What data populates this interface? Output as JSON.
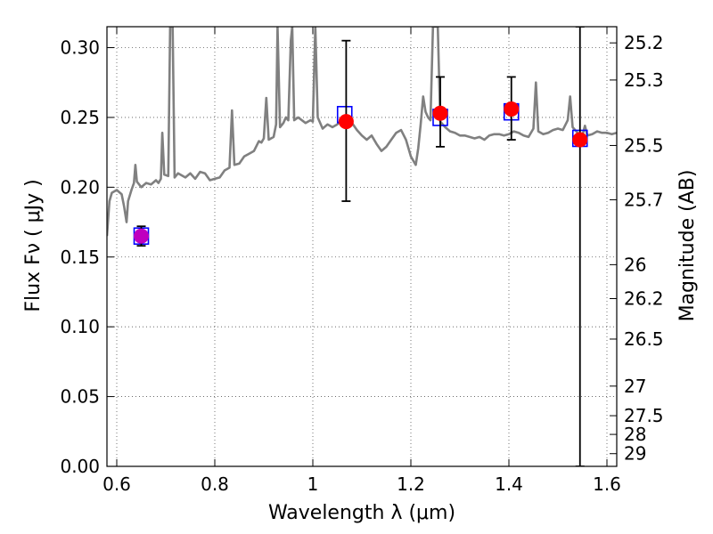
{
  "chart_data": {
    "type": "scatter",
    "xlabel": "Wavelength  λ (μm)",
    "ylabel": "Flux  Fν  ( μJy )",
    "ylabel_right": "Magnitude (AB)",
    "xlim": [
      0.58,
      1.62
    ],
    "ylim": [
      0.0,
      0.315
    ],
    "grid": true,
    "x_ticks": [
      {
        "value": 0.6,
        "label": "0.6"
      },
      {
        "value": 0.8,
        "label": "0.8"
      },
      {
        "value": 1.0,
        "label": "1"
      },
      {
        "value": 1.2,
        "label": "1.2"
      },
      {
        "value": 1.4,
        "label": "1.4"
      },
      {
        "value": 1.6,
        "label": "1.6"
      }
    ],
    "y_ticks": [
      {
        "value": 0.0,
        "label": "0.00"
      },
      {
        "value": 0.05,
        "label": "0.05"
      },
      {
        "value": 0.1,
        "label": "0.10"
      },
      {
        "value": 0.15,
        "label": "0.15"
      },
      {
        "value": 0.2,
        "label": "0.20"
      },
      {
        "value": 0.25,
        "label": "0.25"
      },
      {
        "value": 0.3,
        "label": "0.30"
      }
    ],
    "mag_ticks": [
      {
        "flux": 0.3034,
        "label": "25.2"
      },
      {
        "flux": 0.2768,
        "label": "25.3"
      },
      {
        "flux": 0.2299,
        "label": "25.5"
      },
      {
        "flux": 0.191,
        "label": "25.7"
      },
      {
        "flux": 0.1445,
        "label": "26"
      },
      {
        "flux": 0.1202,
        "label": "26.2"
      },
      {
        "flux": 0.0912,
        "label": "26.5"
      },
      {
        "flux": 0.0575,
        "label": "27"
      },
      {
        "flux": 0.0363,
        "label": "27.5"
      },
      {
        "flux": 0.0229,
        "label": "28"
      },
      {
        "flux": 0.0091,
        "label": "29"
      }
    ],
    "colors": {
      "spectrum": "#808080",
      "model_box": "#0000ff",
      "observed": "#ff0000",
      "first_point": "#bf00bf",
      "errorbar": "#000000",
      "grid": "#555555"
    },
    "model_points": [
      {
        "x": 0.65,
        "y": 0.165
      },
      {
        "x": 1.065,
        "y": 0.252
      },
      {
        "x": 1.26,
        "y": 0.25
      },
      {
        "x": 1.405,
        "y": 0.254
      },
      {
        "x": 1.545,
        "y": 0.235
      }
    ],
    "observed_points": [
      {
        "x": 0.65,
        "y": 0.165,
        "ylow": 0.158,
        "yhigh": 0.172,
        "color": "first_point"
      },
      {
        "x": 1.068,
        "y": 0.247,
        "ylow": 0.19,
        "yhigh": 0.305,
        "color": "observed"
      },
      {
        "x": 1.26,
        "y": 0.253,
        "ylow": 0.229,
        "yhigh": 0.279,
        "color": "observed"
      },
      {
        "x": 1.405,
        "y": 0.256,
        "ylow": 0.234,
        "yhigh": 0.279,
        "color": "observed"
      },
      {
        "x": 1.545,
        "y": 0.234,
        "ylow": 0.0,
        "yhigh": 0.315,
        "color": "observed"
      }
    ],
    "spectrum": [
      [
        0.58,
        0.165
      ],
      [
        0.585,
        0.19
      ],
      [
        0.59,
        0.196
      ],
      [
        0.6,
        0.198
      ],
      [
        0.61,
        0.195
      ],
      [
        0.615,
        0.186
      ],
      [
        0.62,
        0.175
      ],
      [
        0.623,
        0.19
      ],
      [
        0.63,
        0.198
      ],
      [
        0.635,
        0.203
      ],
      [
        0.638,
        0.216
      ],
      [
        0.641,
        0.204
      ],
      [
        0.65,
        0.2
      ],
      [
        0.66,
        0.203
      ],
      [
        0.67,
        0.202
      ],
      [
        0.68,
        0.205
      ],
      [
        0.685,
        0.203
      ],
      [
        0.69,
        0.206
      ],
      [
        0.693,
        0.239
      ],
      [
        0.697,
        0.209
      ],
      [
        0.705,
        0.208
      ],
      [
        0.709,
        0.315
      ],
      [
        0.714,
        0.315
      ],
      [
        0.718,
        0.207
      ],
      [
        0.725,
        0.21
      ],
      [
        0.74,
        0.207
      ],
      [
        0.75,
        0.21
      ],
      [
        0.76,
        0.206
      ],
      [
        0.77,
        0.211
      ],
      [
        0.78,
        0.21
      ],
      [
        0.79,
        0.205
      ],
      [
        0.8,
        0.206
      ],
      [
        0.81,
        0.207
      ],
      [
        0.82,
        0.212
      ],
      [
        0.83,
        0.214
      ],
      [
        0.835,
        0.255
      ],
      [
        0.84,
        0.216
      ],
      [
        0.85,
        0.217
      ],
      [
        0.86,
        0.222
      ],
      [
        0.87,
        0.224
      ],
      [
        0.88,
        0.226
      ],
      [
        0.89,
        0.233
      ],
      [
        0.895,
        0.232
      ],
      [
        0.9,
        0.235
      ],
      [
        0.905,
        0.264
      ],
      [
        0.91,
        0.234
      ],
      [
        0.92,
        0.236
      ],
      [
        0.925,
        0.245
      ],
      [
        0.928,
        0.315
      ],
      [
        0.933,
        0.243
      ],
      [
        0.94,
        0.246
      ],
      [
        0.945,
        0.25
      ],
      [
        0.95,
        0.248
      ],
      [
        0.955,
        0.305
      ],
      [
        0.958,
        0.315
      ],
      [
        0.962,
        0.248
      ],
      [
        0.97,
        0.25
      ],
      [
        0.985,
        0.246
      ],
      [
        0.995,
        0.248
      ],
      [
        1.0,
        0.247
      ],
      [
        1.005,
        0.315
      ],
      [
        1.01,
        0.25
      ],
      [
        1.02,
        0.242
      ],
      [
        1.03,
        0.245
      ],
      [
        1.04,
        0.243
      ],
      [
        1.05,
        0.245
      ],
      [
        1.06,
        0.249
      ],
      [
        1.07,
        0.25
      ],
      [
        1.08,
        0.246
      ],
      [
        1.09,
        0.241
      ],
      [
        1.1,
        0.237
      ],
      [
        1.11,
        0.234
      ],
      [
        1.12,
        0.237
      ],
      [
        1.13,
        0.231
      ],
      [
        1.14,
        0.226
      ],
      [
        1.15,
        0.229
      ],
      [
        1.16,
        0.234
      ],
      [
        1.17,
        0.239
      ],
      [
        1.18,
        0.241
      ],
      [
        1.19,
        0.234
      ],
      [
        1.2,
        0.222
      ],
      [
        1.21,
        0.216
      ],
      [
        1.215,
        0.228
      ],
      [
        1.22,
        0.245
      ],
      [
        1.225,
        0.265
      ],
      [
        1.23,
        0.254
      ],
      [
        1.235,
        0.25
      ],
      [
        1.24,
        0.248
      ],
      [
        1.245,
        0.315
      ],
      [
        1.255,
        0.315
      ],
      [
        1.26,
        0.247
      ],
      [
        1.27,
        0.243
      ],
      [
        1.28,
        0.24
      ],
      [
        1.29,
        0.239
      ],
      [
        1.3,
        0.237
      ],
      [
        1.31,
        0.237
      ],
      [
        1.32,
        0.236
      ],
      [
        1.33,
        0.235
      ],
      [
        1.34,
        0.236
      ],
      [
        1.35,
        0.234
      ],
      [
        1.36,
        0.237
      ],
      [
        1.37,
        0.238
      ],
      [
        1.38,
        0.238
      ],
      [
        1.39,
        0.237
      ],
      [
        1.4,
        0.238
      ],
      [
        1.41,
        0.24
      ],
      [
        1.42,
        0.239
      ],
      [
        1.43,
        0.237
      ],
      [
        1.44,
        0.236
      ],
      [
        1.45,
        0.242
      ],
      [
        1.455,
        0.275
      ],
      [
        1.46,
        0.24
      ],
      [
        1.47,
        0.238
      ],
      [
        1.48,
        0.239
      ],
      [
        1.49,
        0.241
      ],
      [
        1.5,
        0.242
      ],
      [
        1.51,
        0.241
      ],
      [
        1.52,
        0.248
      ],
      [
        1.525,
        0.265
      ],
      [
        1.53,
        0.243
      ],
      [
        1.54,
        0.239
      ],
      [
        1.55,
        0.237
      ],
      [
        1.555,
        0.244
      ],
      [
        1.56,
        0.237
      ],
      [
        1.57,
        0.238
      ],
      [
        1.58,
        0.24
      ],
      [
        1.59,
        0.239
      ],
      [
        1.6,
        0.239
      ],
      [
        1.61,
        0.238
      ],
      [
        1.62,
        0.239
      ]
    ]
  }
}
